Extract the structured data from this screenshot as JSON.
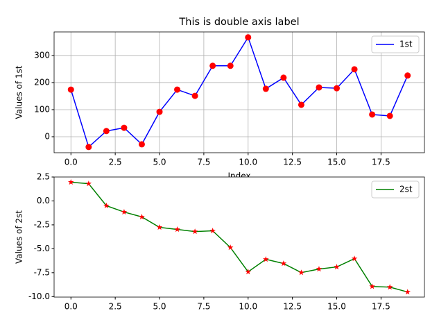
{
  "chart_data": [
    {
      "type": "line",
      "title": "This is double axis label",
      "xlabel": "Index",
      "ylabel": "Values of 1st",
      "x": [
        0,
        1,
        2,
        3,
        4,
        5,
        6,
        7,
        8,
        9,
        10,
        11,
        12,
        13,
        14,
        15,
        16,
        17,
        18,
        19
      ],
      "series": [
        {
          "name": "1st",
          "color": "#0000ff",
          "marker": "circle",
          "marker_color": "#ff0000",
          "values": [
            174,
            -38,
            21,
            33,
            -28,
            92,
            174,
            151,
            262,
            262,
            367,
            177,
            218,
            118,
            182,
            179,
            249,
            82,
            77,
            226
          ]
        }
      ],
      "xlim": [
        -0.95,
        19.95
      ],
      "xticks": [
        {
          "value": 0,
          "label": "0.0"
        },
        {
          "value": 2.5,
          "label": "2.5"
        },
        {
          "value": 5,
          "label": "5.0"
        },
        {
          "value": 7.5,
          "label": "7.5"
        },
        {
          "value": 10,
          "label": "10.0"
        },
        {
          "value": 12.5,
          "label": "12.5"
        },
        {
          "value": 15,
          "label": "15.0"
        },
        {
          "value": 17.5,
          "label": "17.5"
        }
      ],
      "ylim": [
        -59,
        387
      ],
      "yticks": [
        0,
        100,
        200,
        300
      ],
      "grid": true,
      "legend": "upper right"
    },
    {
      "type": "line",
      "ylabel": "Values of 2st",
      "x": [
        0,
        1,
        2,
        3,
        4,
        5,
        6,
        7,
        8,
        9,
        10,
        11,
        12,
        13,
        14,
        15,
        16,
        17,
        18,
        19
      ],
      "series": [
        {
          "name": "2st",
          "color": "#008000",
          "marker": "star",
          "marker_color": "#ff0000",
          "values": [
            1.96,
            1.8,
            -0.5,
            -1.16,
            -1.67,
            -2.76,
            -2.98,
            -3.2,
            -3.12,
            -4.87,
            -7.41,
            -6.1,
            -6.54,
            -7.49,
            -7.12,
            -6.9,
            -6.03,
            -8.94,
            -9.01,
            -9.52
          ]
        }
      ],
      "xlim": [
        -0.95,
        19.95
      ],
      "xticks": [
        {
          "value": 0,
          "label": "0.0"
        },
        {
          "value": 2.5,
          "label": "2.5"
        },
        {
          "value": 5,
          "label": "5.0"
        },
        {
          "value": 7.5,
          "label": "7.5"
        },
        {
          "value": 10,
          "label": "10.0"
        },
        {
          "value": 12.5,
          "label": "12.5"
        },
        {
          "value": 15,
          "label": "15.0"
        },
        {
          "value": 17.5,
          "label": "17.5"
        }
      ],
      "ylim": [
        -10.05,
        2.5
      ],
      "yticks": [
        2.5,
        {
          "value": 0,
          "label": "0.0"
        },
        -2.5,
        {
          "value": -5,
          "label": "-5.0"
        },
        -7.5,
        {
          "value": -10,
          "label": "-10.0"
        }
      ],
      "grid": false,
      "legend": "upper right"
    }
  ]
}
